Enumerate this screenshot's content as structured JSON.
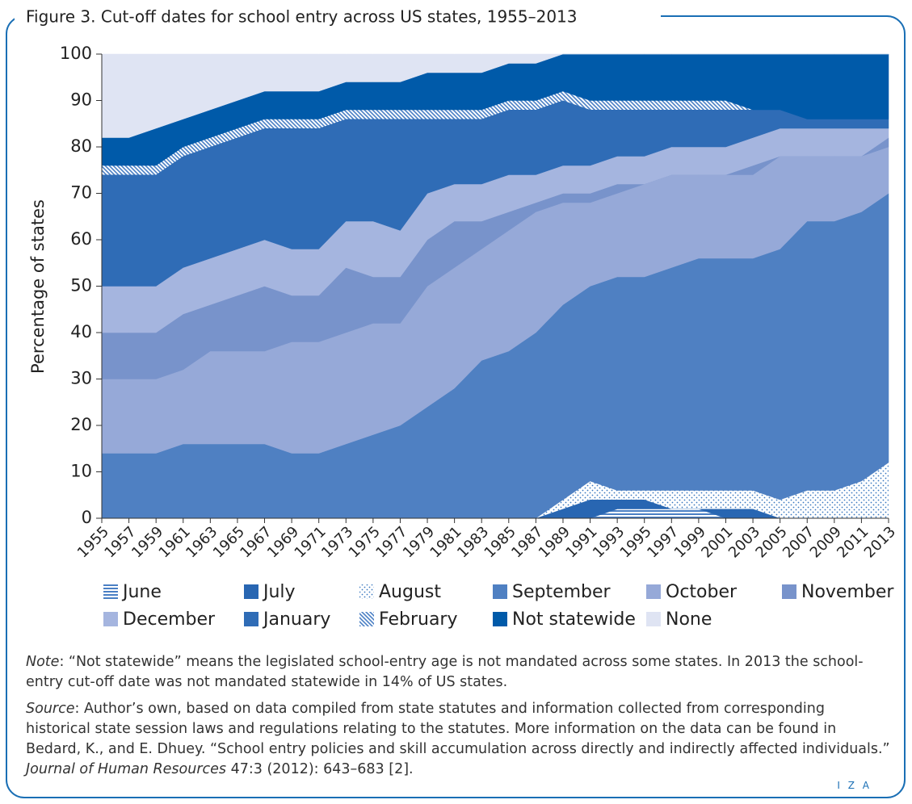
{
  "chart_data": {
    "type": "stacked_area",
    "title": "Figure 3. Cut-off dates for school entry across US states, 1955–2013",
    "y_label": "Percentage of states",
    "x": [
      1955,
      1957,
      1959,
      1961,
      1963,
      1965,
      1967,
      1969,
      1971,
      1973,
      1975,
      1977,
      1979,
      1981,
      1983,
      1985,
      1987,
      1989,
      1991,
      1993,
      1995,
      1997,
      1999,
      2001,
      2003,
      2005,
      2007,
      2009,
      2011,
      2013
    ],
    "xlim": [
      1955,
      2013
    ],
    "xticks": [
      1955,
      1957,
      1959,
      1961,
      1963,
      1965,
      1967,
      1969,
      1971,
      1973,
      1975,
      1977,
      1979,
      1981,
      1983,
      1985,
      1987,
      1989,
      1991,
      1993,
      1995,
      1997,
      1999,
      2001,
      2003,
      2005,
      2007,
      2009,
      2011,
      2013
    ],
    "ylim": [
      0,
      100
    ],
    "yticks": [
      0,
      10,
      20,
      30,
      40,
      50,
      60,
      70,
      80,
      90,
      100
    ],
    "series": [
      {
        "name": "June",
        "color": "#4a7fc4",
        "pattern": "hlines",
        "values": [
          0,
          0,
          0,
          0,
          0,
          0,
          0,
          0,
          0,
          0,
          0,
          0,
          0,
          0,
          0,
          0,
          0,
          0,
          0,
          2,
          2,
          2,
          2,
          0,
          0,
          0,
          0,
          0,
          0,
          0
        ]
      },
      {
        "name": "July",
        "color": "#2866b2",
        "values": [
          0,
          0,
          0,
          0,
          0,
          0,
          0,
          0,
          0,
          0,
          0,
          0,
          0,
          0,
          0,
          0,
          0,
          2,
          4,
          2,
          2,
          0,
          0,
          2,
          2,
          0,
          0,
          0,
          0,
          0
        ]
      },
      {
        "name": "August",
        "color": "#3a78c0",
        "pattern": "dots",
        "values": [
          0,
          0,
          0,
          0,
          0,
          0,
          0,
          0,
          0,
          0,
          0,
          0,
          0,
          0,
          0,
          0,
          0,
          2,
          4,
          2,
          2,
          4,
          4,
          4,
          4,
          4,
          6,
          6,
          8,
          12
        ]
      },
      {
        "name": "September",
        "color": "#4f80c2",
        "values": [
          14,
          14,
          14,
          16,
          16,
          16,
          16,
          14,
          14,
          16,
          18,
          20,
          24,
          28,
          34,
          36,
          40,
          42,
          42,
          46,
          46,
          48,
          50,
          50,
          50,
          54,
          58,
          58,
          58,
          58
        ]
      },
      {
        "name": "October",
        "color": "#96a9d8",
        "values": [
          16,
          16,
          16,
          16,
          20,
          20,
          20,
          24,
          24,
          24,
          24,
          22,
          26,
          26,
          24,
          26,
          26,
          22,
          18,
          18,
          20,
          20,
          18,
          18,
          18,
          20,
          14,
          14,
          12,
          10
        ]
      },
      {
        "name": "November",
        "color": "#7893cb",
        "values": [
          10,
          10,
          10,
          12,
          10,
          12,
          14,
          10,
          10,
          14,
          10,
          10,
          10,
          10,
          6,
          4,
          2,
          2,
          2,
          2,
          0,
          0,
          0,
          0,
          2,
          0,
          0,
          0,
          0,
          2
        ]
      },
      {
        "name": "December",
        "color": "#a5b5df",
        "values": [
          10,
          10,
          10,
          10,
          10,
          10,
          10,
          10,
          10,
          10,
          12,
          10,
          10,
          8,
          8,
          8,
          6,
          6,
          6,
          6,
          6,
          6,
          6,
          6,
          6,
          6,
          6,
          6,
          6,
          2
        ]
      },
      {
        "name": "January",
        "color": "#2f6cb6",
        "values": [
          24,
          24,
          24,
          24,
          24,
          24,
          24,
          26,
          26,
          22,
          22,
          24,
          16,
          14,
          14,
          14,
          14,
          14,
          12,
          10,
          10,
          8,
          8,
          8,
          6,
          4,
          2,
          2,
          2,
          2
        ]
      },
      {
        "name": "February",
        "color": "#4a7fc4",
        "pattern": "diag",
        "values": [
          2,
          2,
          2,
          2,
          2,
          2,
          2,
          2,
          2,
          2,
          2,
          2,
          2,
          2,
          2,
          2,
          2,
          2,
          2,
          2,
          2,
          2,
          2,
          2,
          0,
          0,
          0,
          0,
          0,
          0
        ]
      },
      {
        "name": "Not statewide",
        "color": "#005aa9",
        "values": [
          6,
          6,
          8,
          6,
          6,
          6,
          6,
          6,
          6,
          6,
          6,
          6,
          8,
          8,
          8,
          8,
          8,
          8,
          10,
          10,
          10,
          10,
          10,
          10,
          12,
          12,
          14,
          14,
          14,
          14
        ]
      },
      {
        "name": "None",
        "color": "#dfe4f3",
        "values": [
          18,
          18,
          16,
          14,
          12,
          10,
          8,
          8,
          8,
          6,
          6,
          6,
          4,
          4,
          4,
          2,
          2,
          0,
          0,
          0,
          0,
          0,
          0,
          0,
          0,
          0,
          0,
          0,
          0,
          0
        ]
      }
    ]
  },
  "note": {
    "label": "Note",
    "text": ": “Not statewide” means the legislated school-entry age is not mandated across some states. In 2013 the school-entry cut-off date was not mandated statewide in 14% of US states."
  },
  "source": {
    "label": "Source",
    "text": ": Author’s own, based on data compiled from state statutes and information collected from corresponding historical state session laws and regulations relating to the statutes. More information on the data can be found in Bedard, K., and E. Dhuey. “School entry policies and skill accumulation across directly and indirectly affected individuals.” ",
    "journal": "Journal of Human Resources",
    "text2": " 47:3 (2012): 643–683 [2]."
  },
  "logo": "I Z A"
}
